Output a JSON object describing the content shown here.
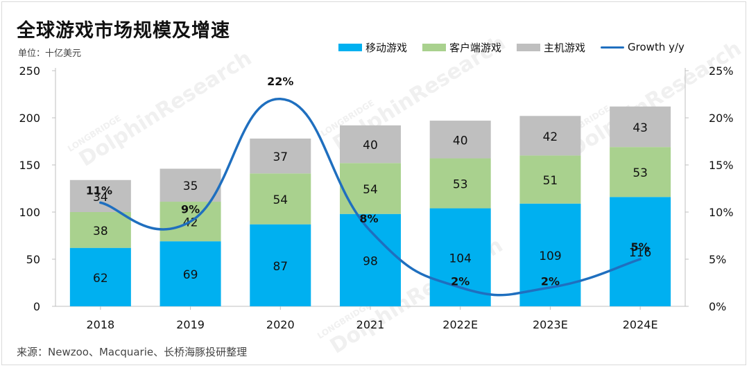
{
  "title": "全球游戏市场规模及增速",
  "unit_label": "单位：十亿美元",
  "source": "来源：Newzoo、Macquarie、长桥海豚投研整理",
  "watermark": {
    "line1": "LONGBRIDGE",
    "line2": "DolphinResearch"
  },
  "colors": {
    "mobile": "#00b0f0",
    "pc": "#a9d18e",
    "console": "#bfbfbf",
    "growth": "#1f6fbf"
  },
  "chart_data": {
    "type": "bar",
    "stacked": true,
    "categories": [
      "2018",
      "2019",
      "2020",
      "2021",
      "2022E",
      "2023E",
      "2024E"
    ],
    "series": [
      {
        "name": "移动游戏",
        "values": [
          62,
          69,
          87,
          98,
          104,
          109,
          116
        ]
      },
      {
        "name": "客户端游戏",
        "values": [
          38,
          42,
          54,
          54,
          53,
          51,
          53
        ]
      },
      {
        "name": "主机游戏",
        "values": [
          34,
          35,
          37,
          40,
          40,
          42,
          43
        ]
      }
    ],
    "line_series": {
      "name": "Growth y/y",
      "axis": "right",
      "values": [
        11,
        9,
        22,
        8,
        2,
        2,
        5
      ],
      "labels": [
        "11%",
        "9%",
        "22%",
        "8%",
        "2%",
        "2%",
        "5%"
      ]
    },
    "ylim": [
      0,
      250
    ],
    "yticks": [
      "0",
      "50",
      "100",
      "150",
      "200",
      "250"
    ],
    "y2lim": [
      0,
      25
    ],
    "y2ticks": [
      "0%",
      "5%",
      "10%",
      "15%",
      "20%",
      "25%"
    ],
    "legend": "top-right"
  }
}
